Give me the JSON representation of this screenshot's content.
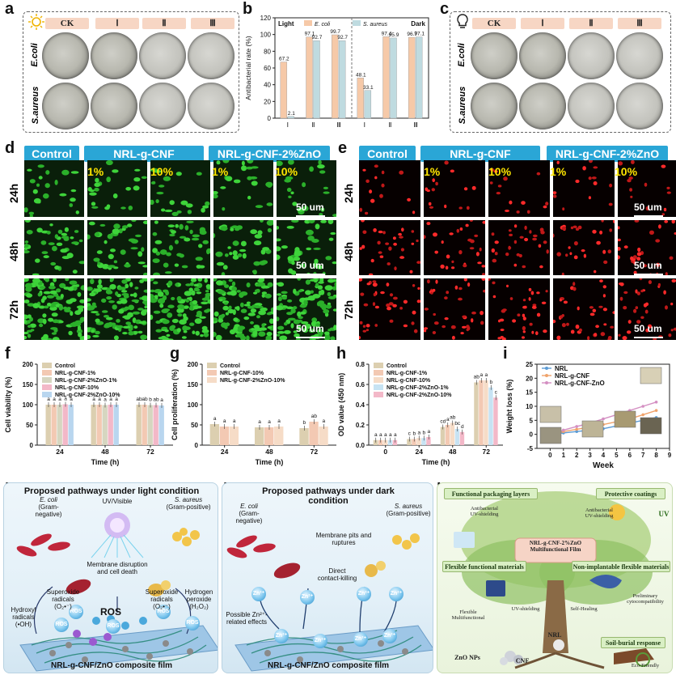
{
  "panels": {
    "a": "a",
    "b": "b",
    "c": "c",
    "d": "d",
    "e": "e",
    "f": "f",
    "g": "g",
    "h": "h",
    "i": "i",
    "j": "j",
    "k": "k",
    "l": "l"
  },
  "plates": {
    "headers": [
      "CK",
      "Ⅰ",
      "Ⅱ",
      "Ⅲ"
    ],
    "rows": [
      "E.coli",
      "S.aureus"
    ]
  },
  "cells": {
    "groups": [
      "Control",
      "NRL-g-CNF",
      "NRL-g-CNF-2%ZnO"
    ],
    "concentrations": [
      "1%",
      "10%",
      "1%",
      "10%"
    ],
    "times": [
      "24h",
      "48h",
      "72h"
    ],
    "scale": "50 um"
  },
  "chart_data": [
    {
      "panel": "b",
      "type": "bar",
      "ylabel": "Antibacterial rate (%)",
      "ylim": [
        0,
        120
      ],
      "yticks": [
        0,
        20,
        40,
        60,
        80,
        100,
        120
      ],
      "groups": [
        "Light",
        "Dark"
      ],
      "categories": [
        "Ⅰ",
        "Ⅱ",
        "Ⅲ",
        "Ⅰ",
        "Ⅱ",
        "Ⅲ"
      ],
      "series": [
        {
          "name": "E. coli",
          "color": "#f6c9a8",
          "values": [
            67.2,
            97.1,
            99.7,
            48.1,
            97.4,
            96.7
          ]
        },
        {
          "name": "S. aureus",
          "color": "#bfdbe0",
          "values": [
            2.1,
            92.7,
            92.7,
            33.1,
            95.9,
            97.1
          ]
        }
      ],
      "data_labels": [
        [
          "67.2",
          "97.1",
          "99.7",
          "48.1",
          "97.4",
          "96.7"
        ],
        [
          "2.1",
          "92.7",
          "92.7",
          "33.1",
          "95.9",
          "97.1"
        ]
      ]
    },
    {
      "panel": "f",
      "type": "bar",
      "ylabel": "Cell viability (%)",
      "xlabel": "Time (h)",
      "ylim": [
        0,
        200
      ],
      "yticks": [
        0,
        50,
        100,
        150,
        200
      ],
      "categories": [
        "24",
        "48",
        "72"
      ],
      "series": [
        {
          "name": "Control",
          "color": "#dccfb0",
          "values": [
            100,
            100,
            100
          ]
        },
        {
          "name": "NRL-g-CNF-1%",
          "color": "#f3c9b3",
          "values": [
            100,
            100,
            100
          ]
        },
        {
          "name": "NRL-g-CNF-2%ZnO-1%",
          "color": "#d6d6c0",
          "values": [
            100,
            99,
            99
          ]
        },
        {
          "name": "NRL-g-CNF-10%",
          "color": "#f3b8c8",
          "values": [
            101,
            100,
            99
          ]
        },
        {
          "name": "NRL-g-CNF-2%ZnO-10%",
          "color": "#b9d6ef",
          "values": [
            100,
            100,
            98
          ]
        }
      ],
      "letters": [
        [
          "a",
          "a",
          "a",
          "a",
          "a"
        ],
        [
          "a",
          "a",
          "a",
          "a",
          "a"
        ],
        [
          "ab",
          "ab",
          "b",
          "ab",
          "a"
        ]
      ]
    },
    {
      "panel": "g",
      "type": "bar",
      "ylabel": "Cell proliferation (%)",
      "xlabel": "Time (h)",
      "ylim": [
        0,
        200
      ],
      "yticks": [
        0,
        50,
        100,
        150,
        200
      ],
      "categories": [
        "24",
        "48",
        "72"
      ],
      "series": [
        {
          "name": "Control",
          "color": "#dccfb0",
          "values": [
            52,
            44,
            42
          ]
        },
        {
          "name": "NRL-g-CNF-10%",
          "color": "#f3c9b3",
          "values": [
            46,
            44,
            58
          ]
        },
        {
          "name": "NRL-g-CNF-2%ZnO-10%",
          "color": "#f6dcc7",
          "values": [
            46,
            46,
            46
          ]
        }
      ],
      "letters": [
        [
          "a",
          "a",
          "a"
        ],
        [
          "a",
          "a",
          "a"
        ],
        [
          "b",
          "ab",
          "a"
        ]
      ]
    },
    {
      "panel": "h",
      "type": "bar",
      "ylabel": "OD value (450 nm)",
      "xlabel": "Time (h)",
      "ylim": [
        0.0,
        0.8
      ],
      "yticks": [
        0.0,
        0.2,
        0.4,
        0.6,
        0.8
      ],
      "categories": [
        "0",
        "24",
        "48",
        "72"
      ],
      "series": [
        {
          "name": "Control",
          "color": "#dccfb0",
          "values": [
            0.05,
            0.06,
            0.18,
            0.62
          ]
        },
        {
          "name": "NRL-g-CNF-1%",
          "color": "#f3c9b3",
          "values": [
            0.05,
            0.06,
            0.2,
            0.64
          ]
        },
        {
          "name": "NRL-g-CNF-10%",
          "color": "#f6dcc7",
          "values": [
            0.05,
            0.07,
            0.22,
            0.64
          ]
        },
        {
          "name": "NRL-g-CNF-2%ZnO-1%",
          "color": "#c7e3f3",
          "values": [
            0.05,
            0.07,
            0.16,
            0.57
          ]
        },
        {
          "name": "NRL-g-CNF-2%ZnO-10%",
          "color": "#f3b8c8",
          "values": [
            0.05,
            0.08,
            0.13,
            0.47
          ]
        }
      ],
      "letters": [
        [
          "a",
          "a",
          "a",
          "a",
          "a"
        ],
        [
          "c",
          "b",
          "a",
          "b",
          "a"
        ],
        [
          "cd",
          "a",
          "ab",
          "bc",
          "d"
        ],
        [
          "ab",
          "a",
          "a",
          "b",
          "c"
        ]
      ]
    },
    {
      "panel": "i",
      "type": "line",
      "ylabel": "Weight loss (%)",
      "xlabel": "Week",
      "xlim": [
        -1,
        9
      ],
      "ylim": [
        -5,
        25
      ],
      "xticks": [
        0,
        1,
        2,
        3,
        4,
        5,
        6,
        7,
        8,
        9
      ],
      "yticks": [
        -5,
        0,
        5,
        10,
        15,
        20,
        25
      ],
      "x": [
        0,
        1,
        2,
        3,
        4,
        5,
        6,
        7,
        8
      ],
      "series": [
        {
          "name": "NRL",
          "color": "#5b9bd5",
          "values": [
            0,
            0.5,
            1,
            1.5,
            2,
            3,
            4,
            5,
            6
          ]
        },
        {
          "name": "NRL-g-CNF",
          "color": "#f0a36b",
          "values": [
            0,
            1,
            1.8,
            2.6,
            3.5,
            4.5,
            5.5,
            7,
            8.5
          ]
        },
        {
          "name": "NRL-g-CNF-ZnO",
          "color": "#d48fc2",
          "values": [
            0,
            1.5,
            2.8,
            4,
            5.5,
            7,
            8.5,
            10,
            11.5
          ]
        }
      ]
    }
  ],
  "b_legend": {
    "light": "Light",
    "dark": "Dark",
    "ecoli": "E. coli",
    "saureus": "S. aureus"
  },
  "schematic_j": {
    "title": "Proposed pathways under light condition",
    "ecoli": "E. coli",
    "ecoli_gram": "(Gram-negative)",
    "saureus": "S. aureus",
    "saureus_gram": "(Gram-positive)",
    "uv": "UV/Visible",
    "membrane": "Membrane disruption",
    "membrane2": "and cell death",
    "ros": "ROS",
    "hydroxyl": "Hydroxyl",
    "hydroxyl2": "radicals",
    "hydroxyl3": "(•OH)",
    "superoxide": "Superoxide",
    "superoxide2": "radicals",
    "superoxide3": "(O₂•⁻)",
    "peroxide": "Hydrogen",
    "peroxide2": "peroxide",
    "peroxide3": "(H₂O₂)",
    "film": "NRL-g-CNF/ZnO composite film"
  },
  "schematic_k": {
    "title": "Proposed pathways under dark",
    "title2": "condition",
    "ecoli": "E. coli",
    "ecoli_gram": "(Gram-negative)",
    "saureus": "S. aureus",
    "saureus_gram": "(Gram-positive)",
    "pits": "Membrane pits and",
    "pits2": "ruptures",
    "direct": "Direct",
    "direct2": "contact-killing",
    "possible": "Possible Zn²⁺-",
    "possible2": "related effects",
    "zn": "Zn²⁺",
    "film": "NRL-g-CNF/ZnO composite film"
  },
  "schematic_l": {
    "packaging": "Functional packaging layers",
    "coatings": "Protective coatings",
    "flexible": "Flexible functional materials",
    "nonimplant": "Non-implantable flexible materials",
    "soil": "Soil-burial response",
    "center": "NRL-g-CNF-2%ZnO",
    "center2": "Multifunctional Film",
    "antibacterial": "Antibacterial",
    "uvshield": "UV-shielding",
    "flexible_sub": "Flexible",
    "multifunctional": "Multifunctional",
    "prelim": "Preliminary",
    "cyto": "cytocompatibility",
    "uvshield2": "UV-shielding",
    "selfheal": "Self-Healing",
    "eco": "Eco-Friendly",
    "zno": "ZnO NPs",
    "cnf": "CNF",
    "nrl": "NRL",
    "uv": "UV"
  }
}
